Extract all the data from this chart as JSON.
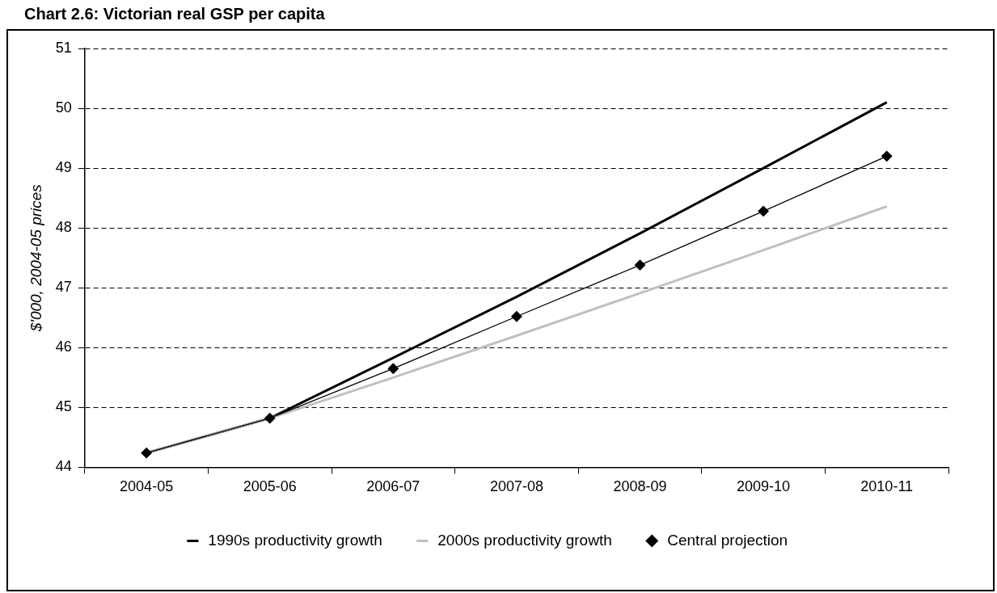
{
  "chart_data": {
    "type": "line",
    "title": "Chart 2.6: Victorian real GSP per capita",
    "ylabel": "$'000, 2004-05 prices",
    "categories": [
      "2004-05",
      "2005-06",
      "2006-07",
      "2007-08",
      "2008-09",
      "2009-10",
      "2010-11"
    ],
    "series": [
      {
        "name": "1990s productivity growth",
        "color": "#000000",
        "marker": "none",
        "values": [
          44.24,
          44.82,
          45.83,
          46.85,
          47.91,
          49.0,
          50.1
        ]
      },
      {
        "name": "2000s productivity growth",
        "color": "#c0c0c0",
        "marker": "none",
        "values": [
          44.24,
          44.82,
          45.5,
          46.2,
          46.91,
          47.63,
          48.36
        ]
      },
      {
        "name": "Central projection",
        "color": "#000000",
        "marker": "diamond",
        "values": [
          44.24,
          44.82,
          45.65,
          46.52,
          47.38,
          48.28,
          49.2
        ]
      }
    ],
    "ylim": [
      44,
      51
    ],
    "yticks": [
      44,
      45,
      46,
      47,
      48,
      49,
      50,
      51
    ],
    "grid": "y",
    "legend": "bottom",
    "line_style": "solid"
  }
}
